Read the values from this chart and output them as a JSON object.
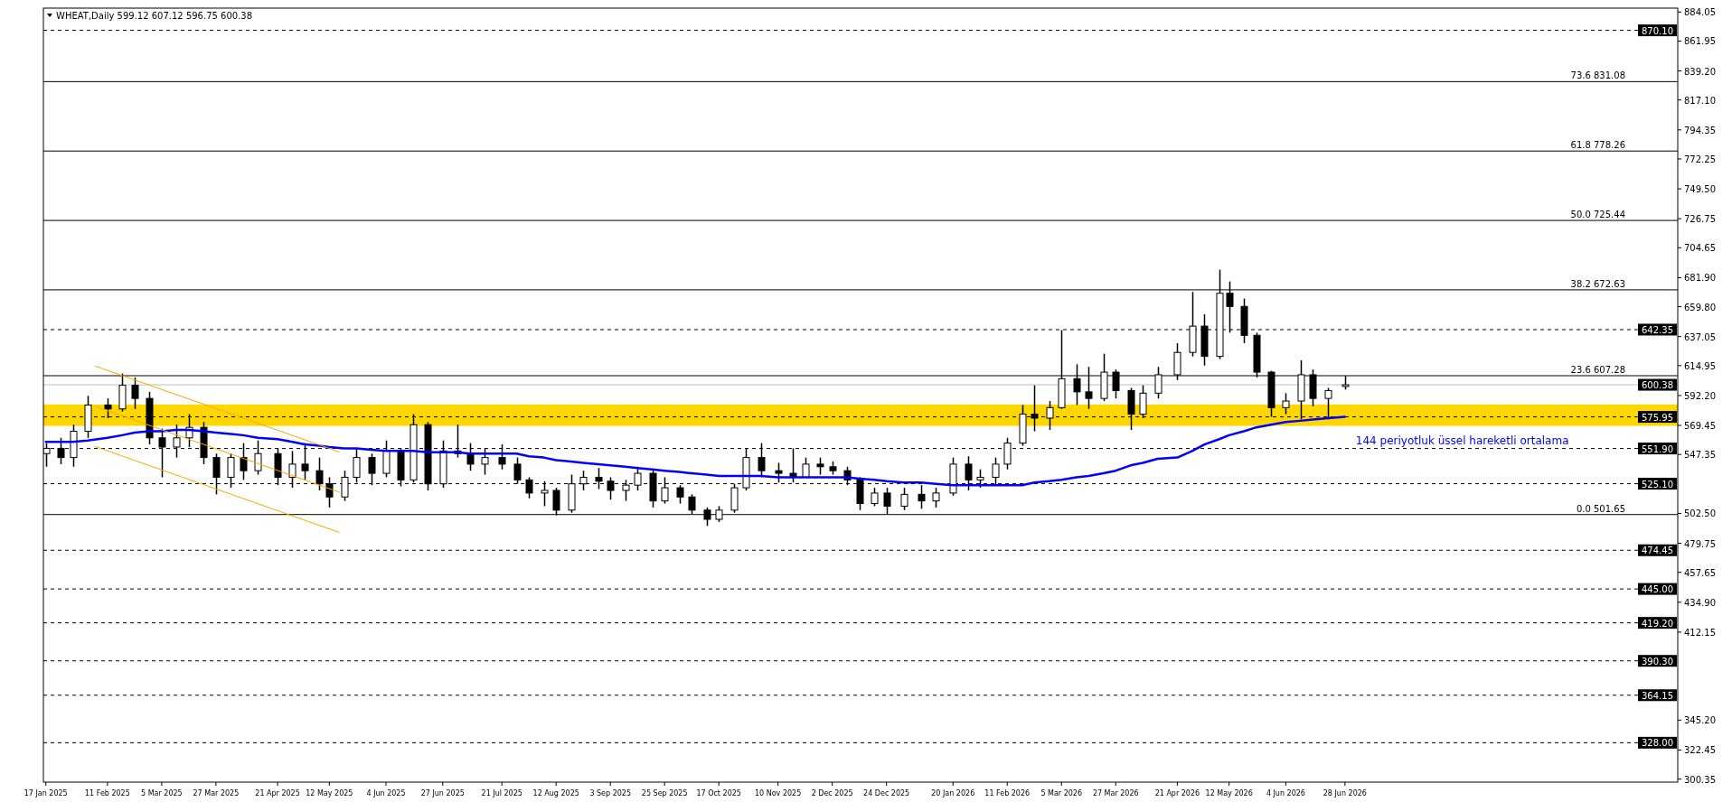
{
  "chart_data": {
    "type": "candlestick",
    "title": "WHEAT,Daily 599.12 607.12 596.75 600.38",
    "x": [
      "2025-01-17",
      "2025-01-23",
      "2025-01-28",
      "2025-02-03",
      "2025-02-11",
      "2025-02-17",
      "2025-02-22",
      "2025-02-28",
      "2025-03-05",
      "2025-03-11",
      "2025-03-16",
      "2025-03-22",
      "2025-03-27",
      "2025-04-02",
      "2025-04-07",
      "2025-04-13",
      "2025-04-21",
      "2025-04-27",
      "2025-05-02",
      "2025-05-08",
      "2025-05-12",
      "2025-05-18",
      "2025-05-23",
      "2025-05-29",
      "2025-06-04",
      "2025-06-10",
      "2025-06-15",
      "2025-06-21",
      "2025-06-27",
      "2025-07-03",
      "2025-07-08",
      "2025-07-14",
      "2025-07-21",
      "2025-07-27",
      "2025-08-01",
      "2025-08-07",
      "2025-08-12",
      "2025-08-18",
      "2025-08-23",
      "2025-08-29",
      "2025-09-03",
      "2025-09-09",
      "2025-09-14",
      "2025-09-20",
      "2025-09-25",
      "2025-10-01",
      "2025-10-06",
      "2025-10-12",
      "2025-10-17",
      "2025-10-23",
      "2025-10-28",
      "2025-11-03",
      "2025-11-10",
      "2025-11-16",
      "2025-11-21",
      "2025-11-27",
      "2025-12-02",
      "2025-12-08",
      "2025-12-13",
      "2025-12-19",
      "2025-12-24",
      "2025-12-31",
      "2026-01-07",
      "2026-01-13",
      "2026-01-20",
      "2026-01-26",
      "2026-01-31",
      "2026-02-06",
      "2026-02-11",
      "2026-02-17",
      "2026-02-22",
      "2026-02-28",
      "2026-03-05",
      "2026-03-11",
      "2026-03-16",
      "2026-03-22",
      "2026-03-27",
      "2026-04-02",
      "2026-04-07",
      "2026-04-13",
      "2026-04-21",
      "2026-04-27",
      "2026-05-02",
      "2026-05-08",
      "2026-05-12",
      "2026-05-18",
      "2026-05-23",
      "2026-05-29",
      "2026-06-04",
      "2026-06-10",
      "2026-06-15",
      "2026-06-21",
      "2026-06-28"
    ],
    "ohlc": [
      [
        548,
        556,
        538,
        552
      ],
      [
        552,
        560,
        540,
        545
      ],
      [
        545,
        570,
        538,
        565
      ],
      [
        565,
        592,
        560,
        585
      ],
      [
        585,
        590,
        575,
        582
      ],
      [
        582,
        609,
        580,
        600
      ],
      [
        600,
        606,
        582,
        590
      ],
      [
        590,
        595,
        555,
        560
      ],
      [
        560,
        567,
        530,
        553
      ],
      [
        553,
        570,
        545,
        560
      ],
      [
        560,
        578,
        553,
        568
      ],
      [
        568,
        572,
        540,
        545
      ],
      [
        545,
        548,
        517,
        530
      ],
      [
        530,
        548,
        522,
        545
      ],
      [
        545,
        556,
        528,
        535
      ],
      [
        535,
        558,
        532,
        548
      ],
      [
        548,
        552,
        524,
        530
      ],
      [
        530,
        550,
        522,
        540
      ],
      [
        540,
        556,
        528,
        535
      ],
      [
        535,
        545,
        520,
        525
      ],
      [
        525,
        530,
        507,
        515
      ],
      [
        515,
        535,
        512,
        530
      ],
      [
        530,
        552,
        526,
        545
      ],
      [
        545,
        548,
        524,
        533
      ],
      [
        533,
        558,
        530,
        550
      ],
      [
        550,
        552,
        523,
        528
      ],
      [
        528,
        578,
        526,
        570
      ],
      [
        570,
        572,
        520,
        525
      ],
      [
        525,
        558,
        522,
        550
      ],
      [
        550,
        570,
        545,
        548
      ],
      [
        548,
        556,
        535,
        540
      ],
      [
        540,
        552,
        532,
        545
      ],
      [
        545,
        555,
        536,
        540
      ],
      [
        540,
        545,
        525,
        528
      ],
      [
        528,
        530,
        514,
        518
      ],
      [
        518,
        527,
        508,
        520
      ],
      [
        520,
        522,
        501,
        505
      ],
      [
        505,
        532,
        503,
        525
      ],
      [
        525,
        535,
        520,
        530
      ],
      [
        530,
        537,
        521,
        527
      ],
      [
        527,
        530,
        513,
        520
      ],
      [
        520,
        528,
        512,
        524
      ],
      [
        524,
        538,
        520,
        533
      ],
      [
        533,
        536,
        507,
        512
      ],
      [
        512,
        530,
        510,
        522
      ],
      [
        522,
        524,
        510,
        515
      ],
      [
        515,
        517,
        502,
        505
      ],
      [
        505,
        507,
        493,
        498
      ],
      [
        498,
        508,
        496,
        505
      ],
      [
        505,
        525,
        503,
        522
      ],
      [
        522,
        552,
        520,
        545
      ],
      [
        545,
        556,
        530,
        535
      ],
      [
        535,
        541,
        526,
        533
      ],
      [
        533,
        552,
        526,
        530
      ],
      [
        530,
        545,
        530,
        540
      ],
      [
        540,
        545,
        532,
        538
      ],
      [
        538,
        542,
        532,
        535
      ],
      [
        535,
        538,
        524,
        528
      ],
      [
        528,
        530,
        505,
        510
      ],
      [
        510,
        522,
        508,
        518
      ],
      [
        518,
        522,
        502,
        508
      ],
      [
        508,
        522,
        505,
        517
      ],
      [
        517,
        524,
        506,
        512
      ],
      [
        512,
        522,
        507,
        518
      ],
      [
        518,
        545,
        516,
        540
      ],
      [
        540,
        546,
        520,
        528
      ],
      [
        528,
        536,
        522,
        530
      ],
      [
        530,
        545,
        524,
        540
      ],
      [
        540,
        560,
        536,
        556
      ],
      [
        556,
        585,
        554,
        578
      ],
      [
        578,
        600,
        565,
        575
      ],
      [
        575,
        588,
        566,
        583
      ],
      [
        583,
        642,
        582,
        605
      ],
      [
        605,
        616,
        585,
        595
      ],
      [
        595,
        614,
        582,
        590
      ],
      [
        590,
        624,
        588,
        610
      ],
      [
        610,
        612,
        590,
        596
      ],
      [
        596,
        598,
        566,
        578
      ],
      [
        578,
        600,
        575,
        594
      ],
      [
        594,
        614,
        590,
        608
      ],
      [
        608,
        632,
        604,
        625
      ],
      [
        625,
        671,
        622,
        645
      ],
      [
        645,
        654,
        615,
        622
      ],
      [
        622,
        688,
        620,
        670
      ],
      [
        670,
        679,
        640,
        660
      ],
      [
        660,
        666,
        632,
        638
      ],
      [
        638,
        640,
        606,
        610
      ],
      [
        610,
        611,
        576,
        583
      ],
      [
        583,
        594,
        578,
        588
      ],
      [
        588,
        619,
        574,
        608
      ],
      [
        608,
        612,
        584,
        590
      ],
      [
        590,
        598,
        574,
        596
      ],
      [
        599.12,
        607.12,
        596.75,
        600.38
      ]
    ],
    "series": [
      {
        "type": "line",
        "name": "144 periyotluk üssel hareketli ortalama",
        "color": "#0000ff",
        "values": [
          557,
          557,
          557,
          558,
          560,
          562,
          564,
          565,
          565,
          566,
          566,
          565,
          564,
          563,
          562,
          560,
          559,
          557,
          555,
          554,
          553,
          552,
          552,
          551,
          550,
          550,
          550,
          549,
          549,
          549,
          548,
          548,
          548,
          548,
          546,
          545,
          543,
          542,
          541,
          540,
          539,
          538,
          537,
          536,
          535,
          534,
          533,
          532,
          531,
          531,
          531,
          531,
          530,
          530,
          530,
          530,
          530,
          530,
          529,
          528,
          527,
          526,
          526,
          525,
          524,
          524,
          524,
          524,
          524,
          524,
          526,
          527,
          528,
          530,
          531,
          533,
          535,
          539,
          541,
          544,
          545,
          550,
          555,
          559,
          562,
          565,
          568,
          570,
          572,
          573,
          574,
          575,
          576
        ]
      },
      {
        "type": "line",
        "color": "#ffa500",
        "x": [
          "2025-02-06",
          "2025-05-16"
        ],
        "values": [
          614.6,
          549.3
        ]
      },
      {
        "type": "line",
        "color": "#ffa500",
        "x": [
          "2025-02-06",
          "2025-05-16"
        ],
        "values": [
          584.0,
          518.7
        ]
      },
      {
        "type": "line",
        "color": "#ffa500",
        "x": [
          "2025-02-06",
          "2025-05-16"
        ],
        "values": [
          553.4,
          488.1
        ]
      }
    ],
    "xlim": [
      "2025-01-16",
      "2026-11-10"
    ],
    "xticks": [
      {
        "value": "2025-01-17",
        "label": "17 Jan 2025"
      },
      {
        "value": "2025-02-11",
        "label": "11 Feb 2025"
      },
      {
        "value": "2025-03-05",
        "label": "5 Mar 2025"
      },
      {
        "value": "2025-03-27",
        "label": "27 Mar 2025"
      },
      {
        "value": "2025-04-21",
        "label": "21 Apr 2025"
      },
      {
        "value": "2025-05-12",
        "label": "12 May 2025"
      },
      {
        "value": "2025-06-04",
        "label": "4 Jun 2025"
      },
      {
        "value": "2025-06-27",
        "label": "27 Jun 2025"
      },
      {
        "value": "2025-07-21",
        "label": "21 Jul 2025"
      },
      {
        "value": "2025-08-12",
        "label": "12 Aug 2025"
      },
      {
        "value": "2025-09-03",
        "label": "3 Sep 2025"
      },
      {
        "value": "2025-09-25",
        "label": "25 Sep 2025"
      },
      {
        "value": "2025-10-17",
        "label": "17 Oct 2025"
      },
      {
        "value": "2025-11-10",
        "label": "10 Nov 2025"
      },
      {
        "value": "2025-12-02",
        "label": "2 Dec 2025"
      },
      {
        "value": "2025-12-24",
        "label": "24 Dec 2025"
      },
      {
        "value": "2026-01-20",
        "label": "20 Jan 2026"
      },
      {
        "value": "2026-02-11",
        "label": "11 Feb 2026"
      },
      {
        "value": "2026-03-05",
        "label": "5 Mar 2026"
      },
      {
        "value": "2026-03-27",
        "label": "27 Mar 2026"
      },
      {
        "value": "2026-04-21",
        "label": "21 Apr 2026"
      },
      {
        "value": "2026-05-12",
        "label": "12 May 2026"
      },
      {
        "value": "2026-06-04",
        "label": "4 Jun 2026"
      },
      {
        "value": "2026-06-28",
        "label": "28 Jun 2026"
      }
    ],
    "ylim": [
      298,
      887
    ],
    "yticks": [
      884.05,
      {
        "value": 861.95,
        "label": "861.95"
      },
      {
        "value": 839.2,
        "label": "839.20"
      },
      {
        "value": 817.1,
        "label": "817.10"
      },
      794.35,
      772.25,
      {
        "value": 749.5,
        "label": "749.50"
      },
      726.75,
      704.65,
      {
        "value": 681.9,
        "label": "681.90"
      },
      {
        "value": 659.8,
        "label": "659.80"
      },
      637.05,
      614.95,
      {
        "value": 592.2,
        "label": "592.20"
      },
      569.45,
      547.35,
      {
        "value": 502.5,
        "label": "502.50"
      },
      479.75,
      457.65,
      {
        "value": 434.9,
        "label": "434.90"
      },
      412.15,
      {
        "value": 345.2,
        "label": "345.20"
      },
      322.45,
      300.35
    ],
    "bands": [
      {
        "axis": "y",
        "from": 569.1,
        "to": 585.4,
        "color": "#ffd700"
      }
    ],
    "ref_lines": [
      {
        "axis": "y",
        "value": 870.1,
        "label": "870.10",
        "color": "#000000",
        "line_style": "dashed"
      },
      {
        "axis": "y",
        "value": 642.35,
        "label": "642.35",
        "color": "#000000",
        "line_style": "dashed"
      },
      {
        "axis": "y",
        "value": 575.95,
        "label": "575.95",
        "color": "#000000",
        "line_style": "dashed"
      },
      {
        "axis": "y",
        "value": 551.9,
        "label": "551.90",
        "color": "#000000",
        "line_style": "dashed"
      },
      {
        "axis": "y",
        "value": 525.1,
        "label": "525.10",
        "color": "#000000",
        "line_style": "dashed"
      },
      {
        "axis": "y",
        "value": 474.45,
        "label": "474.45",
        "color": "#000000",
        "line_style": "dashed"
      },
      {
        "axis": "y",
        "value": 445.0,
        "label": "445.00",
        "color": "#000000",
        "line_style": "dashed"
      },
      {
        "axis": "y",
        "value": 419.2,
        "label": "419.20",
        "color": "#000000",
        "line_style": "dashed"
      },
      {
        "axis": "y",
        "value": 390.3,
        "label": "390.30",
        "color": "#000000",
        "line_style": "dashed"
      },
      {
        "axis": "y",
        "value": 364.15,
        "label": "364.15",
        "color": "#000000",
        "line_style": "dashed"
      },
      {
        "axis": "y",
        "value": 328.0,
        "label": "328.00",
        "color": "#000000",
        "line_style": "dashed"
      },
      {
        "axis": "y",
        "value": 831.08,
        "label": "73.6 831.08",
        "color": "#000000",
        "line_style": "solid"
      },
      {
        "axis": "y",
        "value": 778.26,
        "label": "61.8 778.26",
        "color": "#000000",
        "line_style": "solid"
      },
      {
        "axis": "y",
        "value": 725.44,
        "label": "50.0 725.44",
        "color": "#000000",
        "line_style": "solid"
      },
      {
        "axis": "y",
        "value": 672.63,
        "label": "38.2 672.63",
        "color": "#000000",
        "line_style": "solid"
      },
      {
        "axis": "y",
        "value": 607.28,
        "label": "23.6 607.28",
        "color": "#000000",
        "line_style": "solid"
      },
      {
        "axis": "y",
        "value": 501.65,
        "label": "0.0 501.65",
        "color": "#000000",
        "line_style": "solid"
      },
      {
        "axis": "y",
        "value": 600.38,
        "label": "600.38",
        "color": "#c0c0c0",
        "line_style": "solid"
      }
    ]
  }
}
